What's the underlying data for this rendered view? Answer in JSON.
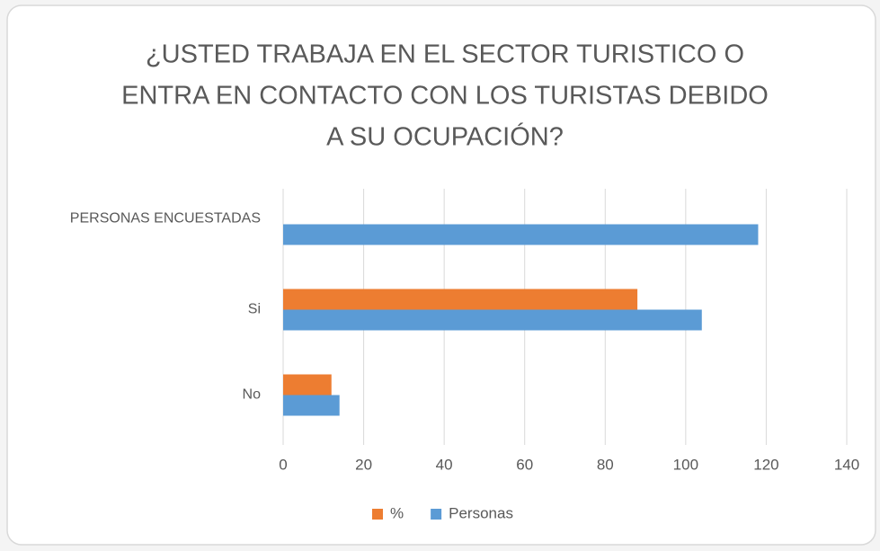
{
  "chart_data": {
    "type": "barh",
    "title": [
      "¿USTED TRABAJA EN EL SECTOR TURISTICO O",
      "ENTRA EN CONTACTO CON LOS TURISTAS DEBIDO",
      "A SU OCUPACIÓN?"
    ],
    "categories": [
      "PERSONAS ENCUESTADAS",
      "Si",
      "No"
    ],
    "series": [
      {
        "name": "%",
        "color": "#ed7d31",
        "values": [
          null,
          88,
          12
        ]
      },
      {
        "name": "Personas",
        "color": "#5b9bd5",
        "values": [
          118,
          104,
          14
        ]
      }
    ],
    "xlim": [
      0,
      140
    ],
    "xticks": [
      0,
      20,
      40,
      60,
      80,
      100,
      120,
      140
    ],
    "grid": true,
    "legend": "bottom"
  }
}
